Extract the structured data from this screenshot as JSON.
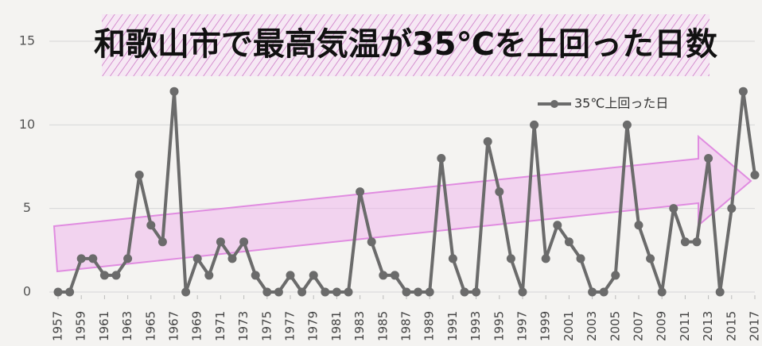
{
  "chart_data": {
    "type": "line",
    "title": "和歌山市で最高気温が35℃を上回った日数",
    "x": [
      1957,
      1958,
      1959,
      1960,
      1961,
      1962,
      1963,
      1964,
      1965,
      1966,
      1967,
      1968,
      1969,
      1970,
      1971,
      1972,
      1973,
      1974,
      1975,
      1976,
      1977,
      1978,
      1979,
      1980,
      1981,
      1982,
      1983,
      1984,
      1985,
      1986,
      1987,
      1988,
      1989,
      1990,
      1991,
      1992,
      1993,
      1994,
      1995,
      1996,
      1997,
      1998,
      1999,
      2000,
      2001,
      2002,
      2003,
      2004,
      2005,
      2006,
      2007,
      2008,
      2009,
      2010,
      2011,
      2012,
      2013,
      2014,
      2015,
      2016,
      2017
    ],
    "series": [
      {
        "name": "35℃上回った日",
        "color": "#6b6b6b",
        "values": [
          0,
          0,
          2,
          2,
          1,
          1,
          2,
          7,
          4,
          3,
          12,
          0,
          2,
          1,
          3,
          2,
          3,
          1,
          0,
          0,
          1,
          0,
          1,
          0,
          0,
          0,
          6,
          3,
          1,
          1,
          0,
          0,
          0,
          8,
          2,
          0,
          0,
          9,
          6,
          2,
          0,
          10,
          2,
          4,
          3,
          2,
          0,
          0,
          1,
          10,
          4,
          2,
          0,
          5,
          3,
          3,
          8,
          0,
          5,
          12,
          7
        ]
      }
    ],
    "xlim": [
      1957,
      2017
    ],
    "xticks": [
      1957,
      1959,
      1961,
      1963,
      1965,
      1967,
      1969,
      1971,
      1973,
      1975,
      1977,
      1979,
      1981,
      1983,
      1985,
      1987,
      1989,
      1991,
      1993,
      1995,
      1997,
      1999,
      2001,
      2003,
      2005,
      2007,
      2009,
      2011,
      2013,
      2015,
      2017
    ],
    "ylim": [
      0,
      15
    ],
    "yticks": [
      0,
      5,
      10,
      15
    ],
    "grid": true
  }
}
